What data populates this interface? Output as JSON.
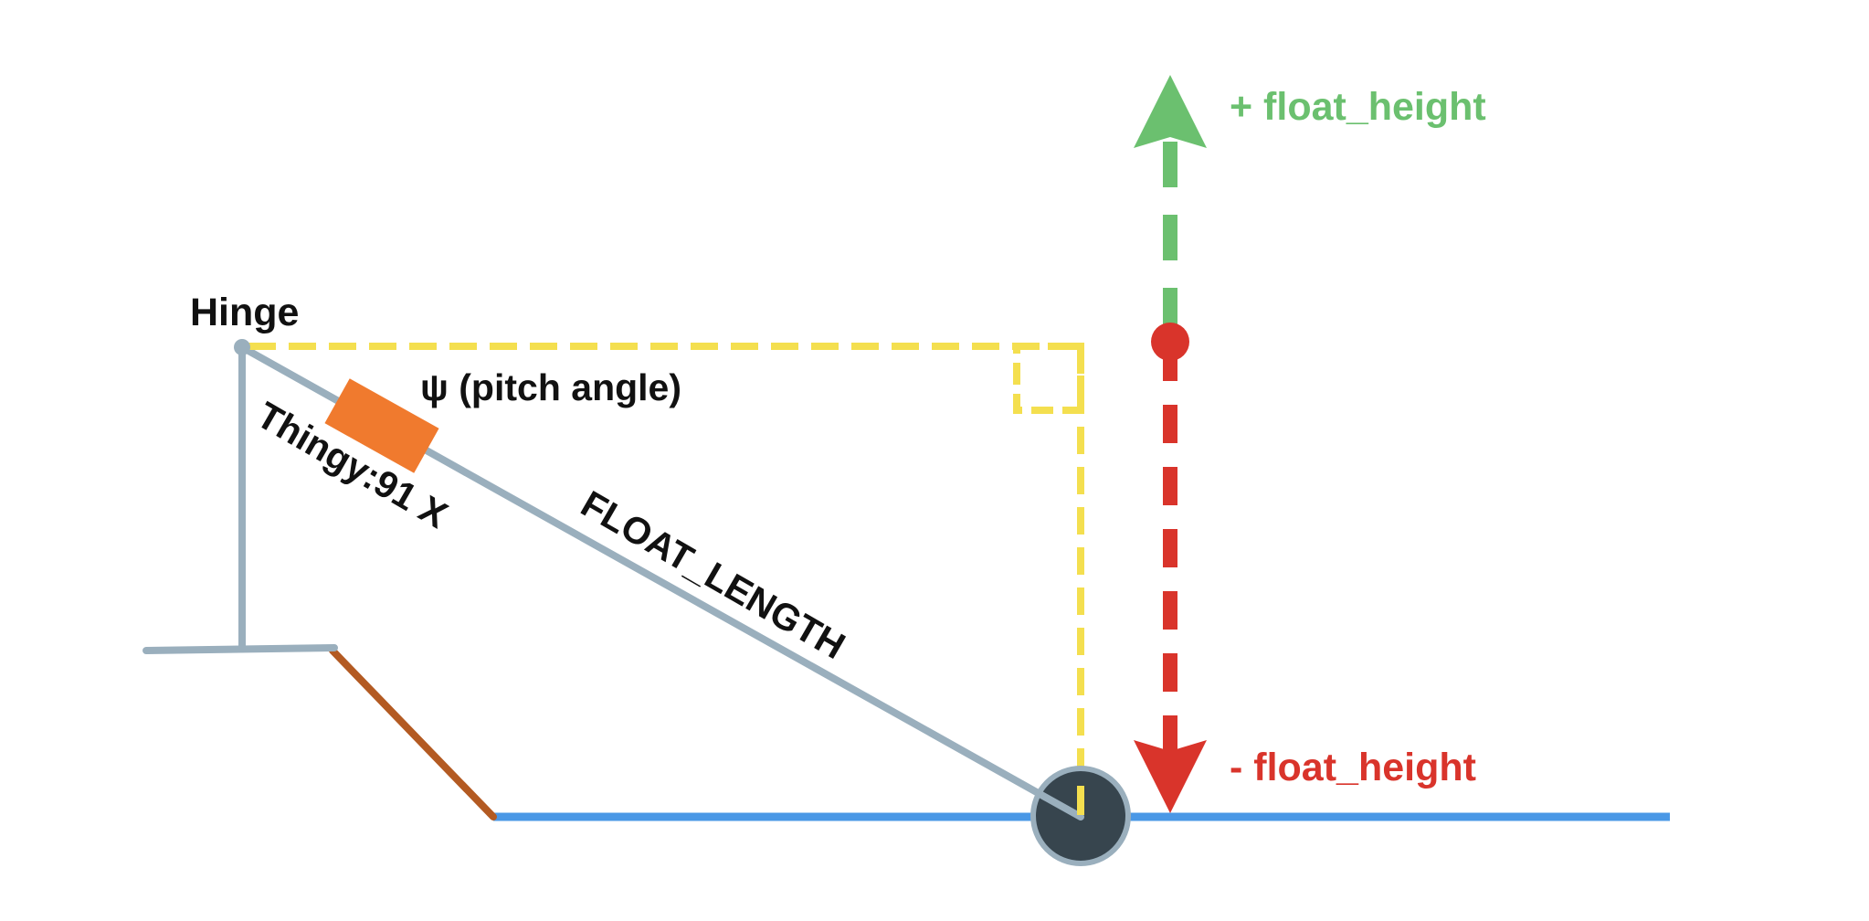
{
  "labels": {
    "hinge": "Hinge",
    "pitch_angle": "ψ (pitch angle)",
    "thingy": "Thingy:91 X",
    "float_length": "FLOAT_LENGTH",
    "float_height_positive": "+ float_height",
    "float_height_negative": "- float_height"
  },
  "colors": {
    "arm": "#9aafbd",
    "sensor": "#f07a2e",
    "ramp": "#b35a22",
    "water": "#4a98e6",
    "float": "#37454e",
    "float_outline": "#9aafbd",
    "guide": "#f4df4f",
    "positive": "#6bc06f",
    "negative": "#d9342b",
    "text": "#111111"
  }
}
